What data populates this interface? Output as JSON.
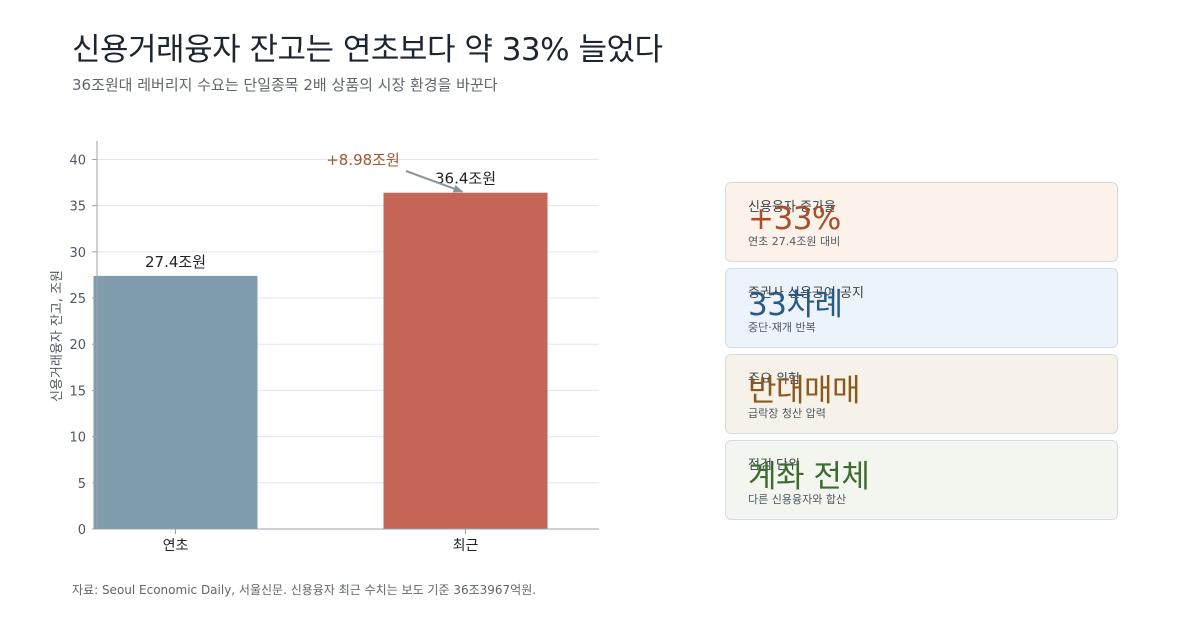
{
  "header": {
    "title": "신용거래융자 잔고는 연초보다 약 33% 늘었다",
    "subtitle": "36조원대 레버리지 수요는 단일종목 2배 상품의 시장 환경을 바꾼다"
  },
  "chart_data": {
    "type": "bar",
    "categories": [
      "연초",
      "최근"
    ],
    "values": [
      27.4,
      36.4
    ],
    "data_labels": [
      "27.4조원",
      "36.4조원"
    ],
    "ylabel": "신용거래융자 잔고, 조원",
    "ylim": [
      0,
      42
    ],
    "yticks": [
      0,
      5,
      10,
      15,
      20,
      25,
      30,
      35,
      40
    ],
    "grid": true,
    "colors": [
      "#7f9cad",
      "#c66555"
    ],
    "annotation": {
      "text": "+8.98조원",
      "target_category": "최근",
      "color": "#a55530"
    }
  },
  "cards": [
    {
      "label": "신용융자 증가율",
      "value": "+33%",
      "sub": "연초 27.4조원 대비",
      "bg": "#fdf2e9",
      "value_color": "#a84e2d"
    },
    {
      "label": "증권사 신용공여 공지",
      "value": "33차례",
      "sub": "중단·재개 반복",
      "bg": "#ecf3fb",
      "value_color": "#2a5b80"
    },
    {
      "label": "주요 위험",
      "value": "반대매매",
      "sub": "급락장 청산 압력",
      "bg": "#f6f2ea",
      "value_color": "#8a5a1c"
    },
    {
      "label": "점검 단위",
      "value": "계좌 전체",
      "sub": "다른 신용융자와 합산",
      "bg": "#f2f6ef",
      "value_color": "#3f6b30"
    }
  ],
  "footer": {
    "source": "자료: Seoul Economic Daily, 서울신문. 신용융자 최근 수치는 보도 기준 36조3967억원."
  }
}
